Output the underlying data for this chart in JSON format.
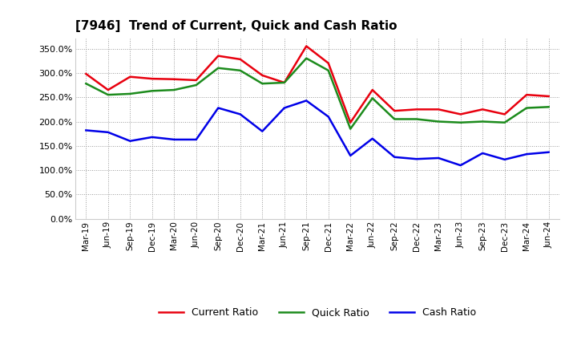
{
  "title": "[7946]  Trend of Current, Quick and Cash Ratio",
  "x_labels": [
    "Mar-19",
    "Jun-19",
    "Sep-19",
    "Dec-19",
    "Mar-20",
    "Jun-20",
    "Sep-20",
    "Dec-20",
    "Mar-21",
    "Jun-21",
    "Sep-21",
    "Dec-21",
    "Mar-22",
    "Jun-22",
    "Sep-22",
    "Dec-22",
    "Mar-23",
    "Jun-23",
    "Sep-23",
    "Dec-23",
    "Mar-24",
    "Jun-24"
  ],
  "current_ratio": [
    298,
    265,
    292,
    288,
    287,
    285,
    335,
    328,
    295,
    280,
    355,
    320,
    198,
    265,
    222,
    225,
    225,
    215,
    225,
    215,
    255,
    252
  ],
  "quick_ratio": [
    278,
    255,
    257,
    263,
    265,
    275,
    310,
    305,
    278,
    280,
    330,
    305,
    185,
    248,
    205,
    205,
    200,
    198,
    200,
    198,
    228,
    230
  ],
  "cash_ratio": [
    182,
    178,
    160,
    168,
    163,
    163,
    228,
    215,
    180,
    228,
    243,
    210,
    130,
    165,
    127,
    123,
    125,
    110,
    135,
    122,
    133,
    137
  ],
  "current_color": "#e8000e",
  "quick_color": "#1c8b1c",
  "cash_color": "#0000e8",
  "ylim": [
    0,
    370
  ],
  "yticks": [
    0,
    50,
    100,
    150,
    200,
    250,
    300,
    350
  ],
  "background_color": "#ffffff",
  "grid_color": "#999999",
  "legend_labels": [
    "Current Ratio",
    "Quick Ratio",
    "Cash Ratio"
  ]
}
